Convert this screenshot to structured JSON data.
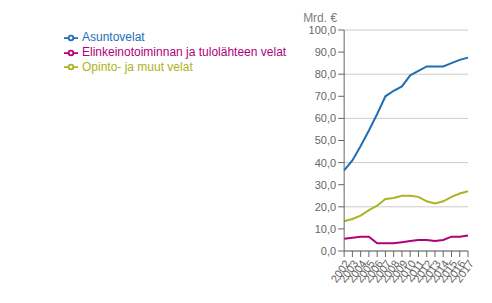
{
  "chart_data": {
    "type": "line",
    "y_label": "Mrd. €",
    "categories": [
      "2002",
      "2003",
      "2004",
      "2005",
      "2006",
      "2007",
      "2008",
      "2009",
      "2010",
      "2011",
      "2012",
      "2013",
      "2014",
      "2015",
      "2016",
      "2017"
    ],
    "series": [
      {
        "name": "Asuntovelat",
        "color": "#1f6eb5",
        "values": [
          36.5,
          41.0,
          47.5,
          54.5,
          62.0,
          70.0,
          72.5,
          74.5,
          79.5,
          81.5,
          83.5,
          83.5,
          83.5,
          85.0,
          86.5,
          87.5
        ]
      },
      {
        "name": "Opinto- ja muut velat",
        "color": "#aab424",
        "values": [
          13.5,
          14.5,
          16.0,
          18.5,
          20.5,
          23.5,
          24.0,
          25.0,
          25.0,
          24.5,
          22.5,
          21.5,
          22.5,
          24.5,
          26.0,
          27.0
        ]
      },
      {
        "name": "Elinkeinotoiminnan ja tulolähteen velat",
        "color": "#b0007c",
        "values": [
          5.5,
          6.0,
          6.5,
          6.5,
          3.5,
          3.5,
          3.5,
          4.0,
          4.5,
          5.0,
          5.0,
          4.5,
          5.0,
          6.5,
          6.5,
          7.0
        ]
      }
    ],
    "ylim": [
      0,
      100
    ],
    "yticks": [
      {
        "value": 0,
        "label": "0,0"
      },
      {
        "value": 10,
        "label": "10,0"
      },
      {
        "value": 20,
        "label": "20,0"
      },
      {
        "value": 30,
        "label": "30,0"
      },
      {
        "value": 40,
        "label": "40,0"
      },
      {
        "value": 50,
        "label": "50,0"
      },
      {
        "value": 60,
        "label": "60,0"
      },
      {
        "value": 70,
        "label": "70,0"
      },
      {
        "value": 80,
        "label": "80,0"
      },
      {
        "value": 90,
        "label": "90,0"
      },
      {
        "value": 100,
        "label": "100,0"
      }
    ],
    "grid": true,
    "legend": "upper left"
  }
}
